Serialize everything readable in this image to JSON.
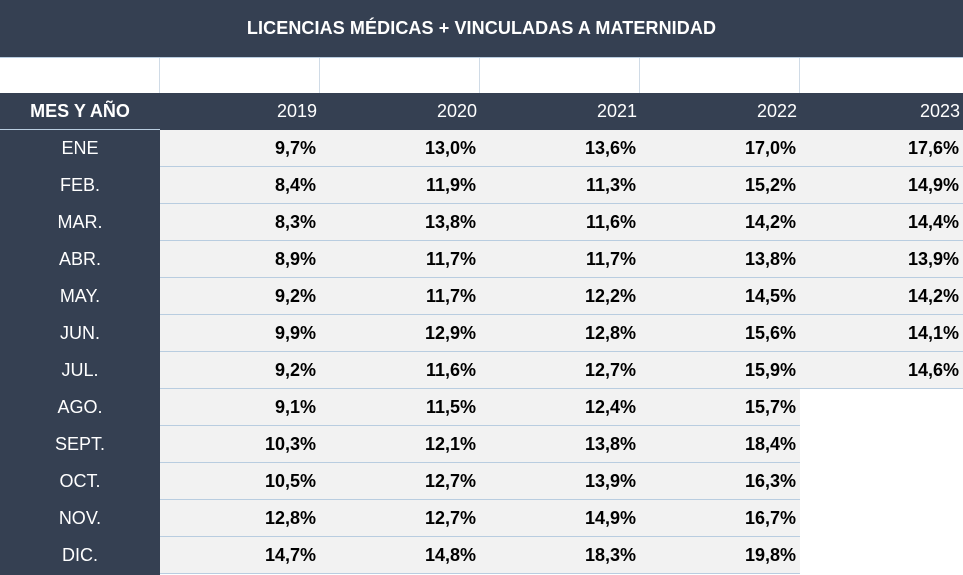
{
  "title": "LICENCIAS MÉDICAS + VINCULADAS A MATERNIDAD",
  "header": {
    "label": "MES Y AÑO",
    "years": [
      "2019",
      "2020",
      "2021",
      "2022",
      "2023"
    ]
  },
  "rows": [
    {
      "month": "ENE",
      "values": [
        "9,7%",
        "13,0%",
        "13,6%",
        "17,0%",
        "17,6%"
      ]
    },
    {
      "month": "FEB.",
      "values": [
        "8,4%",
        "11,9%",
        "11,3%",
        "15,2%",
        "14,9%"
      ]
    },
    {
      "month": "MAR.",
      "values": [
        "8,3%",
        "13,8%",
        "11,6%",
        "14,2%",
        "14,4%"
      ]
    },
    {
      "month": "ABR.",
      "values": [
        "8,9%",
        "11,7%",
        "11,7%",
        "13,8%",
        "13,9%"
      ]
    },
    {
      "month": "MAY.",
      "values": [
        "9,2%",
        "11,7%",
        "12,2%",
        "14,5%",
        "14,2%"
      ]
    },
    {
      "month": "JUN.",
      "values": [
        "9,9%",
        "12,9%",
        "12,8%",
        "15,6%",
        "14,1%"
      ]
    },
    {
      "month": "JUL.",
      "values": [
        "9,2%",
        "11,6%",
        "12,7%",
        "15,9%",
        "14,6%"
      ]
    },
    {
      "month": "AGO.",
      "values": [
        "9,1%",
        "11,5%",
        "12,4%",
        "15,7%",
        ""
      ]
    },
    {
      "month": "SEPT.",
      "values": [
        "10,3%",
        "12,1%",
        "13,8%",
        "18,4%",
        ""
      ]
    },
    {
      "month": "OCT.",
      "values": [
        "10,5%",
        "12,7%",
        "13,9%",
        "16,3%",
        ""
      ]
    },
    {
      "month": "NOV.",
      "values": [
        "12,8%",
        "12,7%",
        "14,9%",
        "16,7%",
        ""
      ]
    },
    {
      "month": "DIC.",
      "values": [
        "14,7%",
        "14,8%",
        "18,3%",
        "19,8%",
        ""
      ]
    }
  ],
  "colors": {
    "header_bg": "#354052",
    "cell_bg": "#f2f2f2",
    "grid_line": "#b9cde0"
  }
}
